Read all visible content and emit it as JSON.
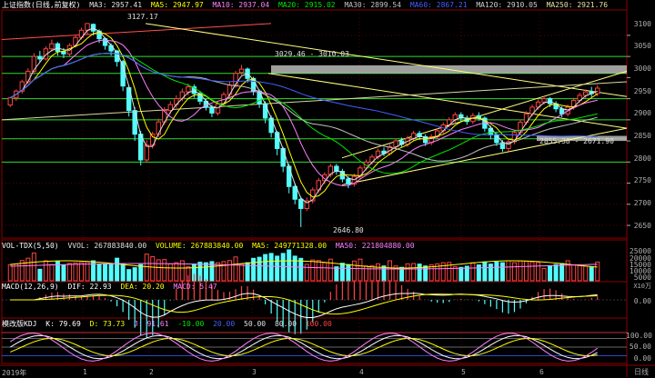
{
  "colors": {
    "up": "#ff4242",
    "down": "#54fcfc",
    "ma3": "#e0e0e0",
    "ma5": "#ffff00",
    "ma10": "#ff80ff",
    "ma20": "#00e600",
    "ma30": "#c0c0c0",
    "ma60": "#4060ff",
    "ma120": "#d0d0d0",
    "ma250": "#e0e0a0",
    "grid": "#8b0000",
    "channel": "#ffff80",
    "band": "#2ddc2d"
  },
  "price_legend": {
    "title": "上证指数(日线,前复权)",
    "ma3": "MA3: 2957.41",
    "ma5": "MA5: 2947.97",
    "ma10": "MA10: 2937.04",
    "ma20": "MA20: 2915.02",
    "ma30": "MA30: 2899.54",
    "ma60": "MA60: 2867.21",
    "ma120": "MA120: 2910.05",
    "ma250": "MA250: 2921.76"
  },
  "vol_legend": {
    "title": "VOL-TDX(5,50)",
    "vvol": "VVOL: 267883840.00",
    "volume": "VOLUME: 267883840.00",
    "ma5": "MA5: 249771328.00",
    "ma50": "MA50: 221804880.00"
  },
  "macd_legend": {
    "title": "MACD(12,26,9)",
    "dif": "DIF: 22.93",
    "dea": "DEA: 20.20",
    "macd": "MACD: 5.47"
  },
  "kdj_legend": {
    "title": "模改版KDJ",
    "k": "K: 79.69",
    "d": "D: 73.73",
    "j": "J: 91.61",
    "l1": "-10.00",
    "l2": "20.00",
    "l3": "50.00",
    "l4": "80.00",
    "l5": "100.00"
  },
  "price_axis": [
    "3100",
    "3050",
    "3000",
    "2950",
    "2900",
    "2850",
    "2800",
    "2750",
    "2700",
    "2650"
  ],
  "vol_axis": [
    "25000",
    "20000",
    "15000",
    "10000",
    "5000"
  ],
  "vol_unit": "X10万",
  "macd_axis": [
    "0.00"
  ],
  "kdj_axis": [
    "100.00",
    "50.00",
    "0.00"
  ],
  "x_axis": {
    "labels": [
      "2019年",
      "1",
      "2",
      "3",
      "4",
      "5",
      "6"
    ]
  },
  "annotations": {
    "high": "3127.17",
    "high2": "3029.46 - 3010.03",
    "low": "2646.80",
    "range": "2855.38 - 2671.90"
  },
  "right_buttons": [
    "日线"
  ],
  "chart_data": {
    "type": "candlestick",
    "title": "上证指数(日线,前复权)",
    "ylim": [
      2620,
      3160
    ],
    "candles": [
      [
        2935,
        2952,
        2954,
        2930
      ],
      [
        2952,
        2968,
        2972,
        2945
      ],
      [
        2968,
        2990,
        2995,
        2962
      ],
      [
        2990,
        3015,
        3022,
        2985
      ],
      [
        3015,
        3050,
        3058,
        3008
      ],
      [
        3050,
        3044,
        3063,
        3036
      ],
      [
        3044,
        3068,
        3074,
        3040
      ],
      [
        3068,
        3080,
        3090,
        3062
      ],
      [
        3080,
        3062,
        3084,
        3052
      ],
      [
        3062,
        3056,
        3070,
        3046
      ],
      [
        3056,
        3076,
        3081,
        3050
      ],
      [
        3076,
        3095,
        3101,
        3071
      ],
      [
        3095,
        3112,
        3118,
        3090
      ],
      [
        3112,
        3128,
        3127,
        3102
      ],
      [
        3126,
        3110,
        3128,
        3100
      ],
      [
        3110,
        3092,
        3114,
        3082
      ],
      [
        3092,
        3076,
        3096,
        3066
      ],
      [
        3076,
        3063,
        3081,
        3052
      ],
      [
        3063,
        3038,
        3066,
        3026
      ],
      [
        3038,
        2980,
        3042,
        2968
      ],
      [
        2976,
        2922,
        2982,
        2908
      ],
      [
        2922,
        2866,
        2930,
        2850
      ],
      [
        2866,
        2805,
        2874,
        2792
      ],
      [
        2805,
        2840,
        2852,
        2798
      ],
      [
        2840,
        2866,
        2872,
        2832
      ],
      [
        2866,
        2895,
        2903,
        2860
      ],
      [
        2895,
        2922,
        2930,
        2888
      ],
      [
        2922,
        2936,
        2944,
        2914
      ],
      [
        2936,
        2950,
        2958,
        2928
      ],
      [
        2950,
        2966,
        2974,
        2944
      ],
      [
        2966,
        2978,
        2986,
        2958
      ],
      [
        2978,
        2962,
        2984,
        2952
      ],
      [
        2962,
        2944,
        2968,
        2936
      ],
      [
        2944,
        2930,
        2950,
        2922
      ],
      [
        2930,
        2916,
        2936,
        2906
      ],
      [
        2916,
        2938,
        2944,
        2910
      ],
      [
        2938,
        2960,
        2966,
        2932
      ],
      [
        2960,
        2982,
        2990,
        2954
      ],
      [
        2982,
        3010,
        3016,
        2976
      ],
      [
        3012,
        3020,
        3030,
        3006
      ],
      [
        3020,
        2998,
        3024,
        2988
      ],
      [
        2998,
        2968,
        3002,
        2958
      ],
      [
        2968,
        2938,
        2972,
        2928
      ],
      [
        2938,
        2904,
        2944,
        2892
      ],
      [
        2904,
        2870,
        2910,
        2858
      ],
      [
        2870,
        2832,
        2874,
        2816
      ],
      [
        2832,
        2790,
        2836,
        2776
      ],
      [
        2790,
        2742,
        2796,
        2726
      ],
      [
        2742,
        2712,
        2750,
        2700
      ],
      [
        2712,
        2690,
        2718,
        2646
      ],
      [
        2690,
        2708,
        2716,
        2684
      ],
      [
        2708,
        2734,
        2740,
        2702
      ],
      [
        2734,
        2756,
        2762,
        2728
      ],
      [
        2756,
        2770,
        2776,
        2748
      ],
      [
        2770,
        2790,
        2796,
        2764
      ],
      [
        2790,
        2778,
        2796,
        2770
      ],
      [
        2778,
        2760,
        2784,
        2752
      ],
      [
        2760,
        2748,
        2766,
        2738
      ],
      [
        2748,
        2766,
        2772,
        2742
      ],
      [
        2766,
        2786,
        2792,
        2760
      ],
      [
        2786,
        2800,
        2806,
        2780
      ],
      [
        2800,
        2812,
        2818,
        2794
      ],
      [
        2812,
        2826,
        2832,
        2806
      ],
      [
        2826,
        2820,
        2834,
        2814
      ],
      [
        2820,
        2836,
        2842,
        2816
      ],
      [
        2836,
        2850,
        2856,
        2830
      ],
      [
        2850,
        2842,
        2858,
        2836
      ],
      [
        2842,
        2856,
        2862,
        2836
      ],
      [
        2856,
        2868,
        2874,
        2850
      ],
      [
        2868,
        2860,
        2874,
        2852
      ],
      [
        2860,
        2846,
        2866,
        2838
      ],
      [
        2846,
        2860,
        2866,
        2840
      ],
      [
        2860,
        2874,
        2880,
        2854
      ],
      [
        2874,
        2888,
        2894,
        2868
      ],
      [
        2888,
        2900,
        2906,
        2882
      ],
      [
        2900,
        2912,
        2918,
        2894
      ],
      [
        2912,
        2904,
        2918,
        2896
      ],
      [
        2904,
        2896,
        2910,
        2888
      ],
      [
        2896,
        2910,
        2916,
        2890
      ],
      [
        2910,
        2904,
        2918,
        2898
      ],
      [
        2904,
        2880,
        2908,
        2872
      ],
      [
        2880,
        2864,
        2886,
        2854
      ],
      [
        2864,
        2846,
        2870,
        2838
      ],
      [
        2846,
        2832,
        2852,
        2824
      ],
      [
        2832,
        2848,
        2854,
        2826
      ],
      [
        2848,
        2870,
        2876,
        2842
      ],
      [
        2870,
        2894,
        2900,
        2864
      ],
      [
        2894,
        2914,
        2920,
        2888
      ],
      [
        2914,
        2930,
        2936,
        2908
      ],
      [
        2930,
        2942,
        2948,
        2924
      ],
      [
        2942,
        2950,
        2956,
        2936
      ],
      [
        2950,
        2938,
        2954,
        2930
      ],
      [
        2938,
        2926,
        2944,
        2918
      ],
      [
        2926,
        2914,
        2932,
        2906
      ],
      [
        2914,
        2930,
        2936,
        2908
      ],
      [
        2930,
        2946,
        2952,
        2924
      ],
      [
        2946,
        2958,
        2964,
        2940
      ],
      [
        2958,
        2966,
        2972,
        2950
      ],
      [
        2966,
        2962,
        2978,
        2954
      ],
      [
        2962,
        2975,
        2982,
        2956
      ]
    ]
  }
}
